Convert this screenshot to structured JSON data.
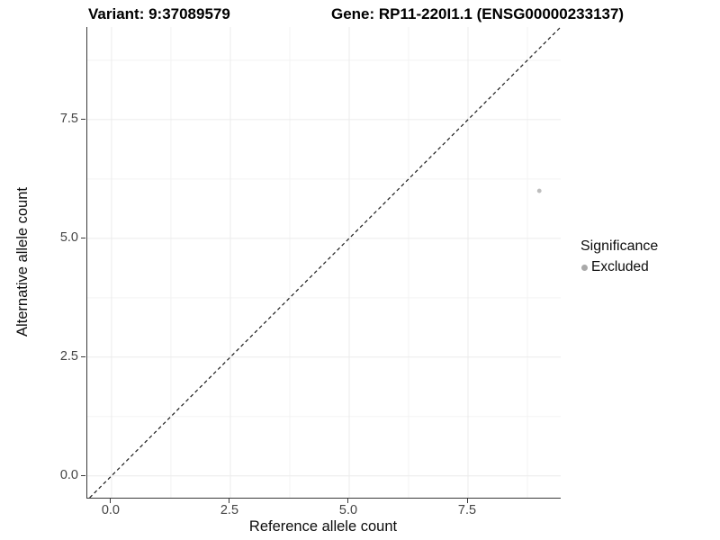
{
  "chart_data": {
    "type": "scatter",
    "title_left": "Variant: 9:37089579",
    "title_right": "Gene: RP11-220I1.1 (ENSG00000233137)",
    "xlabel": "Reference allele count",
    "ylabel": "Alternative allele count",
    "xlim": [
      -0.51,
      9.45
    ],
    "ylim": [
      -0.46,
      9.45
    ],
    "x_ticks": {
      "values": [
        0,
        2.5,
        5,
        7.5
      ],
      "labels": [
        "0.0",
        "2.5",
        "5.0",
        "7.5"
      ]
    },
    "y_ticks": {
      "values": [
        0,
        2.5,
        5,
        7.5
      ],
      "labels": [
        "0.0",
        "2.5",
        "5.0",
        "7.5"
      ]
    },
    "x_minor_ticks": [
      1.25,
      3.75,
      6.25,
      8.75
    ],
    "y_minor_ticks": [
      1.25,
      3.75,
      6.25,
      8.75
    ],
    "grid": true,
    "legend_position": "right",
    "reference_line": {
      "kind": "identity",
      "style": "dashed",
      "color": "#1a1a1a"
    },
    "series": [
      {
        "name": "Excluded",
        "point_color": "#bdbdbd",
        "points": [
          {
            "x": 9.0,
            "y": 6.0
          }
        ]
      }
    ],
    "legend": {
      "title": "Significance",
      "entries": [
        {
          "label": "Excluded",
          "color": "#a9a9a9"
        }
      ]
    }
  },
  "colors": {
    "background": "#ffffff",
    "grid_major": "#ebebeb",
    "grid_minor": "#f3f3f3",
    "axis_line": "#3a3a3a",
    "tick_text": "#444444",
    "title_text": "#000000"
  }
}
